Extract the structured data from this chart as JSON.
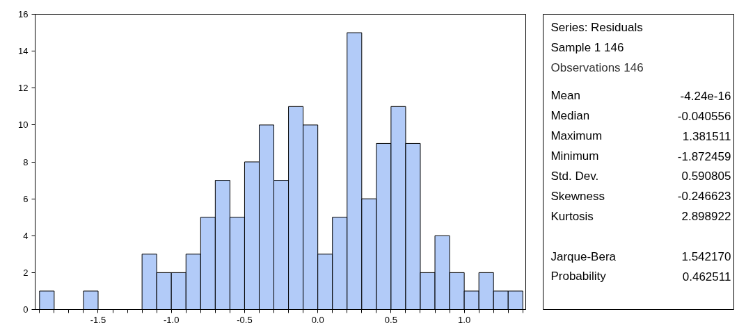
{
  "chart_data": [
    {
      "type": "histogram",
      "bins": [
        -1.9,
        -1.8,
        -1.7,
        -1.6,
        -1.5,
        -1.4,
        -1.3,
        -1.2,
        -1.1,
        -1.0,
        -0.9,
        -0.8,
        -0.7,
        -0.6,
        -0.5,
        -0.4,
        -0.3,
        -0.2,
        -0.1,
        0.0,
        0.1,
        0.2,
        0.3,
        0.4,
        0.5,
        0.6,
        0.7,
        0.8,
        0.9,
        1.0,
        1.1,
        1.2,
        1.3,
        1.4
      ],
      "values": [
        1,
        0,
        0,
        1,
        0,
        0,
        0,
        3,
        2,
        2,
        3,
        5,
        7,
        5,
        8,
        10,
        7,
        11,
        10,
        3,
        5,
        15,
        6,
        9,
        11,
        9,
        2,
        4,
        2,
        1,
        2,
        1,
        1
      ],
      "color": "#a4c2f7",
      "xlim": [
        -1.93,
        1.42
      ],
      "ylim": [
        0,
        16
      ],
      "xticks": [
        {
          "value": -1.9,
          "label": null
        },
        {
          "value": -1.8,
          "label": null
        },
        {
          "value": -1.7,
          "label": null
        },
        {
          "value": -1.6,
          "label": null
        },
        {
          "value": -1.5,
          "label": "-1.5"
        },
        {
          "value": -1.4,
          "label": null
        },
        {
          "value": -1.3,
          "label": null
        },
        {
          "value": -1.2,
          "label": null
        },
        {
          "value": -1.1,
          "label": null
        },
        {
          "value": -1.0,
          "label": "-1.0"
        },
        {
          "value": -0.9,
          "label": null
        },
        {
          "value": -0.8,
          "label": null
        },
        {
          "value": -0.7,
          "label": null
        },
        {
          "value": -0.6,
          "label": null
        },
        {
          "value": -0.5,
          "label": "-0.5"
        },
        {
          "value": -0.4,
          "label": null
        },
        {
          "value": -0.3,
          "label": null
        },
        {
          "value": -0.2,
          "label": null
        },
        {
          "value": -0.1,
          "label": null
        },
        {
          "value": 0.0,
          "label": "0.0"
        },
        {
          "value": 0.1,
          "label": null
        },
        {
          "value": 0.2,
          "label": null
        },
        {
          "value": 0.3,
          "label": null
        },
        {
          "value": 0.4,
          "label": null
        },
        {
          "value": 0.5,
          "label": "0.5"
        },
        {
          "value": 0.6,
          "label": null
        },
        {
          "value": 0.7,
          "label": null
        },
        {
          "value": 0.8,
          "label": null
        },
        {
          "value": 0.9,
          "label": null
        },
        {
          "value": 1.0,
          "label": "1.0"
        },
        {
          "value": 1.1,
          "label": null
        },
        {
          "value": 1.2,
          "label": null
        },
        {
          "value": 1.3,
          "label": null
        },
        {
          "value": 1.4,
          "label": null
        }
      ],
      "yticks": [
        0,
        2,
        4,
        6,
        8,
        10,
        12,
        14,
        16
      ],
      "grid": false
    },
    {
      "type": "other",
      "annotations": [
        "Series: Residuals",
        "Sample 1 146",
        "Observations 146",
        "Mean",
        "-4.24e-16",
        "Median",
        "-0.040556",
        "Maximum",
        "1.381511",
        "Minimum",
        "-1.872459",
        "Std. Dev.",
        "0.590805",
        "Skewness",
        "-0.246623",
        "Kurtosis",
        "2.898922",
        "Jarque-Bera",
        "1.542170",
        "Probability",
        "0.462511"
      ]
    }
  ]
}
